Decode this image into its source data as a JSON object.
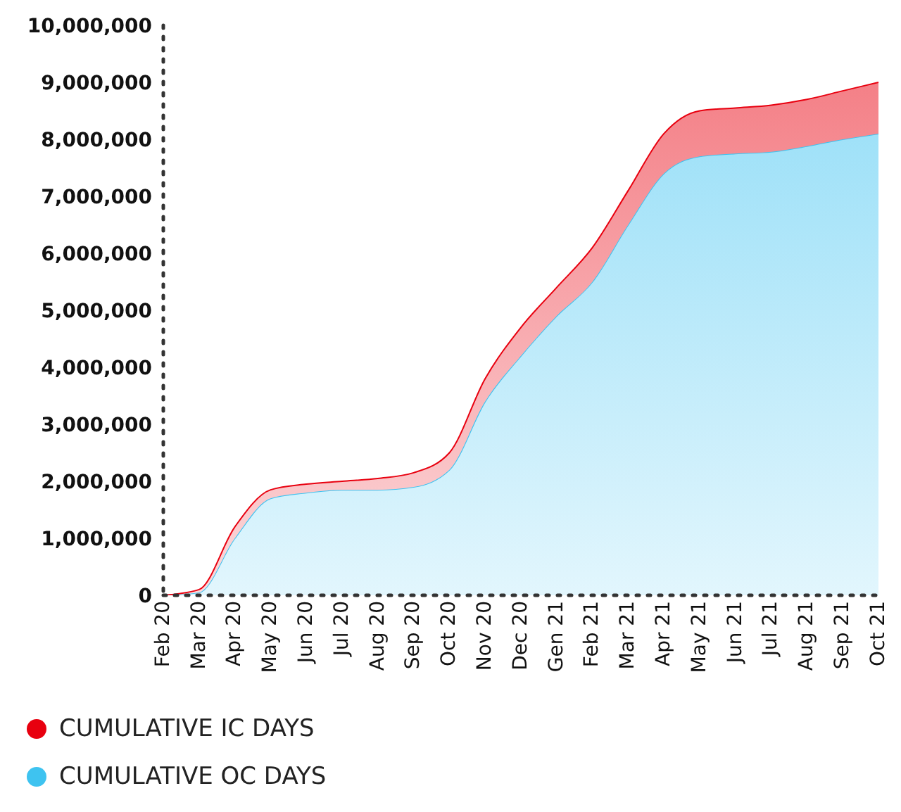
{
  "chart_data": {
    "type": "area",
    "stacked": true,
    "categories": [
      "Feb 20",
      "Mar 20",
      "Apr 20",
      "May 20",
      "Jun 20",
      "Jul 20",
      "Aug 20",
      "Sep 20",
      "Oct 20",
      "Nov 20",
      "Dec 20",
      "Gen 21",
      "Feb 21",
      "Mar 21",
      "Apr 21",
      "May 21",
      "Jun 21",
      "Jul 21",
      "Aug 21",
      "Sep 21",
      "Oct 21"
    ],
    "series": [
      {
        "name": "CUMULATIVE OC DAYS",
        "color": "#3ec3f0",
        "values": [
          0,
          50000,
          1000000,
          1700000,
          1800000,
          1850000,
          1850000,
          1900000,
          2200000,
          3400000,
          4200000,
          4900000,
          5500000,
          6500000,
          7400000,
          7700000,
          7750000,
          7780000,
          7880000,
          8000000,
          8100000
        ]
      },
      {
        "name": "CUMULATIVE IC DAYS",
        "color": "#e8000f",
        "values": [
          0,
          50000,
          200000,
          150000,
          150000,
          150000,
          200000,
          250000,
          300000,
          400000,
          500000,
          500000,
          600000,
          600000,
          700000,
          800000,
          800000,
          820000,
          820000,
          850000,
          900000
        ]
      }
    ],
    "ylim": [
      0,
      10000000
    ],
    "yticks": [
      0,
      {
        "value": 1000000,
        "label": "1,000,000"
      },
      {
        "value": 2000000,
        "label": "2,000,000"
      },
      {
        "value": 3000000,
        "label": "3,000,000"
      },
      {
        "value": 4000000,
        "label": "4,000,000"
      },
      {
        "value": 5000000,
        "label": "5,000,000"
      },
      {
        "value": 6000000,
        "label": "6,000,000"
      },
      {
        "value": 7000000,
        "label": "7,000,000"
      },
      {
        "value": 8000000,
        "label": "8,000,000"
      },
      {
        "value": 9000000,
        "label": "9,000,000"
      },
      {
        "value": 10000000,
        "label": "10,000,000"
      }
    ],
    "grid": false,
    "legend": "bottom"
  }
}
